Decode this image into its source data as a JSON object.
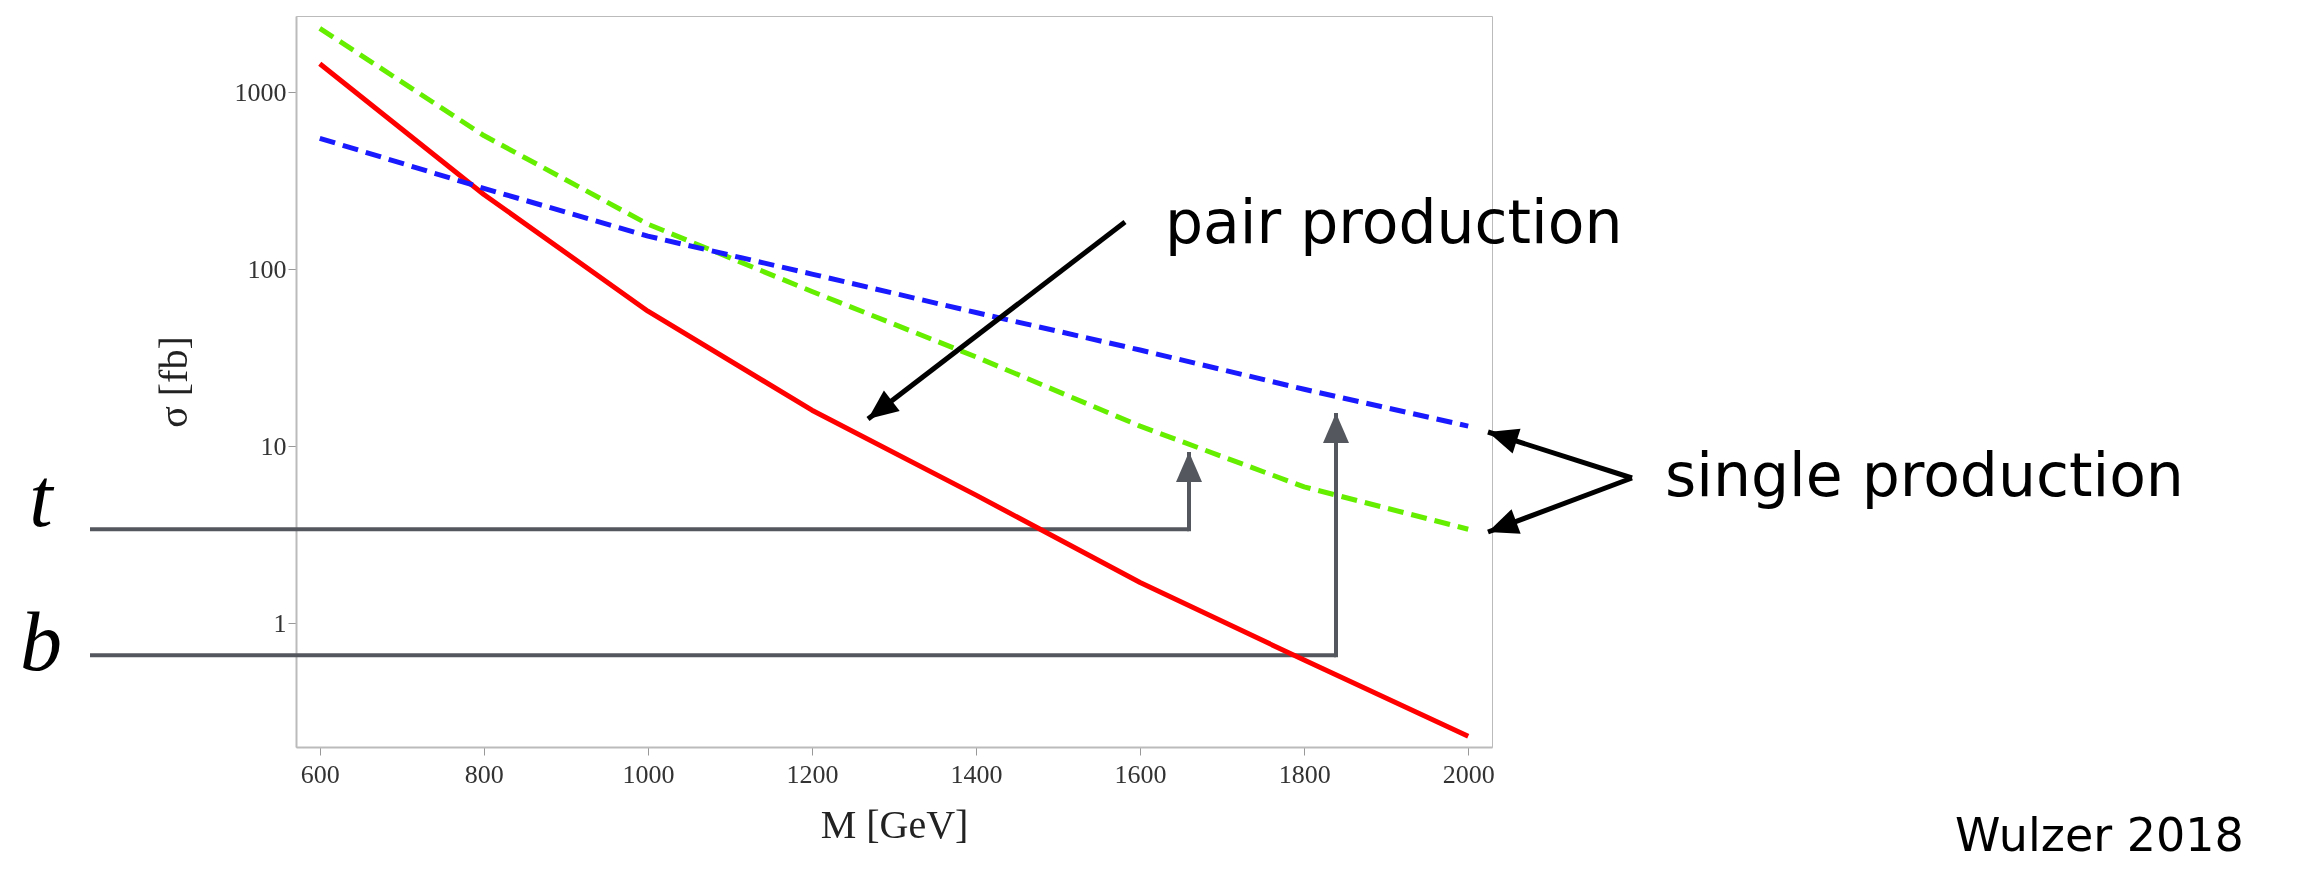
{
  "chart_data": {
    "type": "line",
    "xlabel": "M [GeV]",
    "ylabel": "σ [fb]",
    "x": [
      600,
      800,
      1000,
      1200,
      1400,
      1600,
      1800,
      2000
    ],
    "series": [
      {
        "color": "#ff0000",
        "line_style": "solid",
        "values": [
          1450,
          265,
          58,
          16,
          5.3,
          1.7,
          0.62,
          0.23
        ]
      },
      {
        "color": "#66ee00",
        "line_style": "dashed",
        "values": [
          2300,
          570,
          180,
          75,
          32,
          13,
          5.9,
          3.4
        ]
      },
      {
        "color": "#1a1aff",
        "line_style": "dashed",
        "values": [
          550,
          287,
          154,
          94,
          57,
          35,
          21,
          13
        ]
      }
    ],
    "log": true,
    "xlim": [
      571,
      2029
    ],
    "ylim": [
      0.2,
      2700
    ],
    "xticks": [
      600,
      800,
      1000,
      1200,
      1400,
      1600,
      1800,
      2000
    ],
    "yticks": [
      1,
      10,
      100,
      1000
    ],
    "grid": false,
    "marker": "none",
    "ref_lines": [
      {
        "axis": "y",
        "value": 3.4,
        "label": "t",
        "color": "#54575e"
      },
      {
        "axis": "y",
        "value": 0.66,
        "label": "b",
        "color": "#54575e"
      }
    ],
    "annotations": [
      "pair production",
      "single production",
      "Wulzer 2018"
    ]
  }
}
